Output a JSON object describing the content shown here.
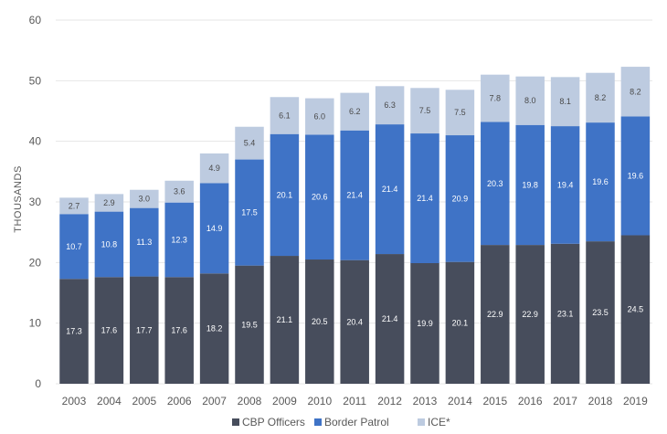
{
  "chart_data": {
    "type": "bar",
    "stacked": true,
    "title": "",
    "xlabel": "",
    "ylabel": "THOUSANDS",
    "ylim": [
      0,
      60
    ],
    "yticks": [
      0,
      10,
      20,
      30,
      40,
      50,
      60
    ],
    "grid": true,
    "legend_position": "bottom",
    "categories": [
      "2003",
      "2004",
      "2005",
      "2006",
      "2007",
      "2008",
      "2009",
      "2010",
      "2011",
      "2012",
      "2013",
      "2014",
      "2015",
      "2016",
      "2017",
      "2018",
      "2019"
    ],
    "series": [
      {
        "name": "CBP Officers",
        "color": "#474d5c",
        "label_color": "#ffffff",
        "values": [
          17.3,
          17.6,
          17.7,
          17.6,
          18.2,
          19.5,
          21.1,
          20.5,
          20.4,
          21.4,
          19.9,
          20.1,
          22.9,
          22.9,
          23.1,
          23.5,
          24.5
        ]
      },
      {
        "name": "Border Patrol",
        "color": "#3f73c6",
        "label_color": "#ffffff",
        "values": [
          10.7,
          10.8,
          11.3,
          12.3,
          14.9,
          17.5,
          20.1,
          20.6,
          21.4,
          21.4,
          21.4,
          20.9,
          20.3,
          19.8,
          19.4,
          19.6,
          19.6
        ]
      },
      {
        "name": "ICE*",
        "color": "#bdcbe0",
        "label_color": "#4a4a4a",
        "values": [
          2.7,
          2.9,
          3.0,
          3.6,
          4.9,
          5.4,
          6.1,
          6.0,
          6.2,
          6.3,
          7.5,
          7.5,
          7.8,
          8.0,
          8.1,
          8.2,
          8.2
        ]
      }
    ]
  }
}
